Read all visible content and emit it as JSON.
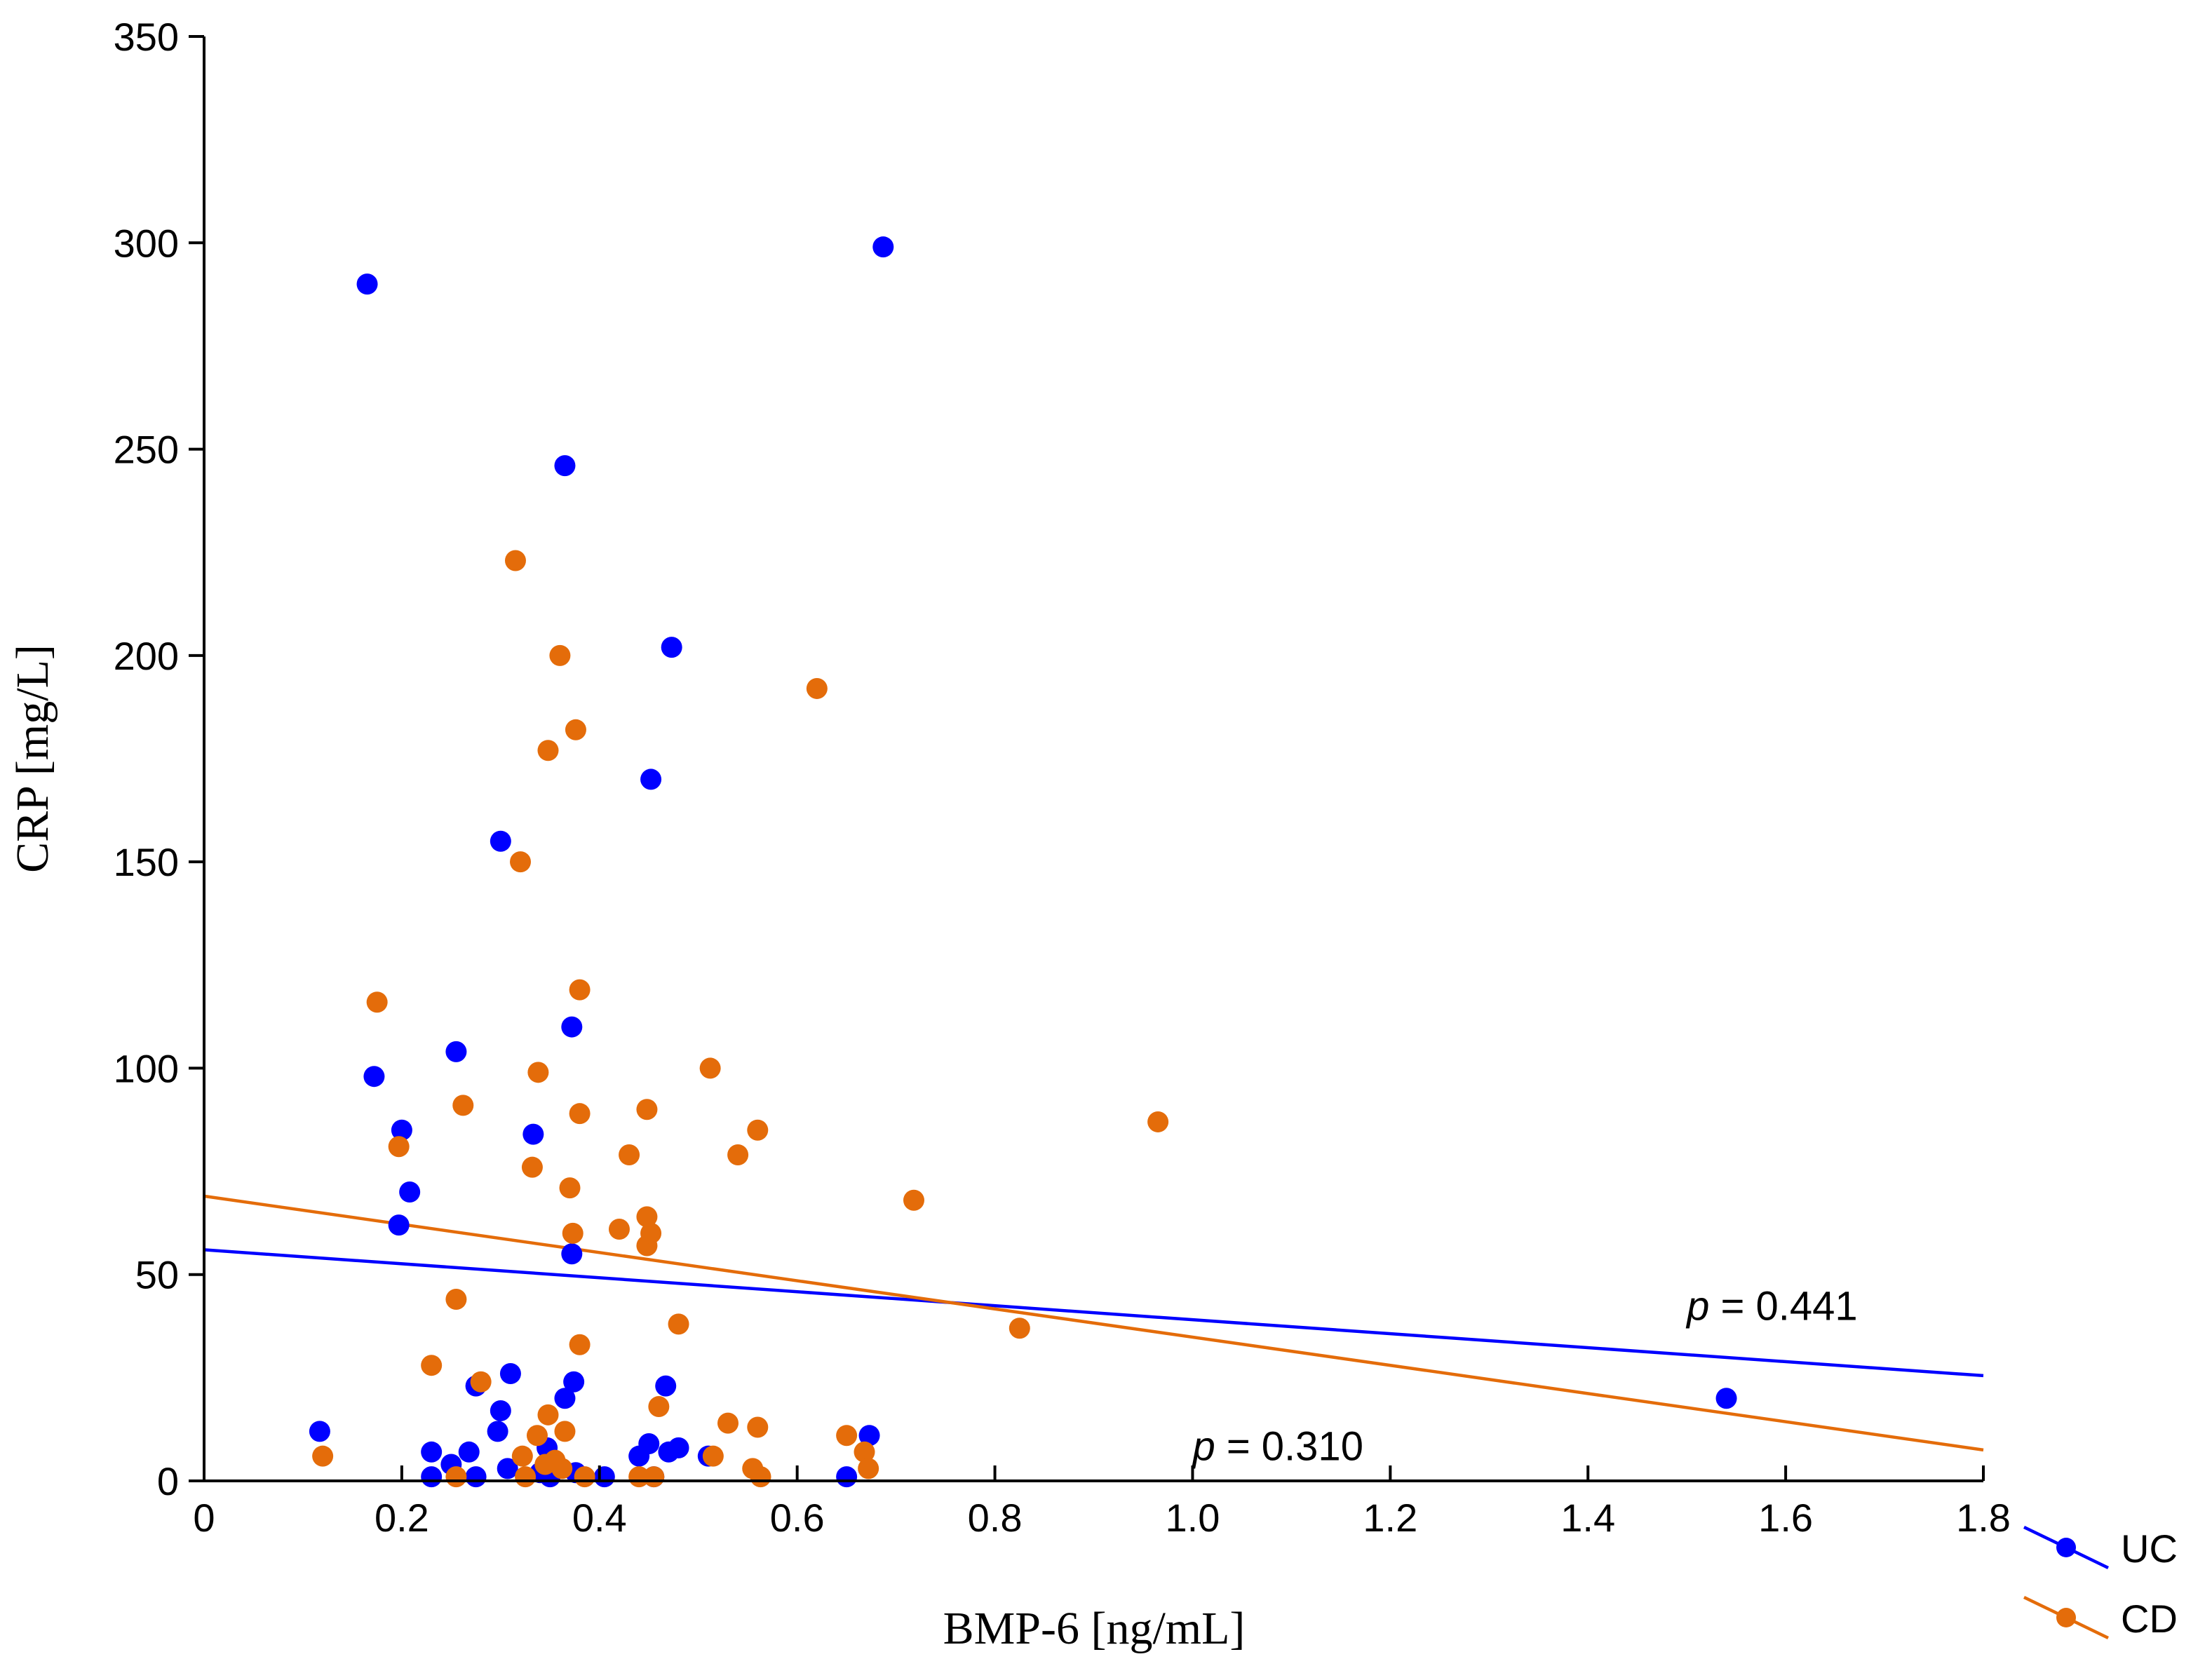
{
  "chart_data": {
    "type": "scatter",
    "title": "",
    "xlabel": "BMP-6 [ng/mL]",
    "ylabel": "CRP [mg/L]",
    "xlim": [
      0,
      1.8
    ],
    "ylim": [
      0,
      350
    ],
    "x_ticks": [
      0,
      0.2,
      0.4,
      0.6,
      0.8,
      1.0,
      1.2,
      1.4,
      1.6,
      1.8
    ],
    "x_tick_labels": [
      "0",
      "0.2",
      "0.4",
      "0.6",
      "0.8",
      "1.0",
      "1.2",
      "1.4",
      "1.6",
      "1.8"
    ],
    "y_ticks": [
      0,
      50,
      100,
      150,
      200,
      250,
      300,
      350
    ],
    "y_tick_labels": [
      "0",
      "50",
      "100",
      "150",
      "200",
      "250",
      "300",
      "350"
    ],
    "legend_position": "bottom-right, outside plot",
    "series": [
      {
        "name": "UC",
        "color": "#0000ff",
        "fit": {
          "x": [
            0,
            1.8
          ],
          "y": [
            56,
            25.5
          ]
        },
        "p_label": {
          "italic": "p",
          "text": " = 0.441",
          "x": 1.5,
          "y": 39
        },
        "points": [
          [
            0.117,
            12
          ],
          [
            0.165,
            290
          ],
          [
            0.172,
            98
          ],
          [
            0.2,
            85
          ],
          [
            0.197,
            62
          ],
          [
            0.208,
            70
          ],
          [
            0.23,
            7
          ],
          [
            0.23,
            1
          ],
          [
            0.25,
            4
          ],
          [
            0.255,
            104
          ],
          [
            0.268,
            7
          ],
          [
            0.275,
            23
          ],
          [
            0.275,
            1
          ],
          [
            0.297,
            12
          ],
          [
            0.3,
            17
          ],
          [
            0.3,
            155
          ],
          [
            0.307,
            3
          ],
          [
            0.31,
            26
          ],
          [
            0.333,
            84
          ],
          [
            0.34,
            2
          ],
          [
            0.347,
            8
          ],
          [
            0.35,
            1
          ],
          [
            0.365,
            246
          ],
          [
            0.365,
            20
          ],
          [
            0.372,
            110
          ],
          [
            0.372,
            55
          ],
          [
            0.374,
            24
          ],
          [
            0.376,
            2
          ],
          [
            0.405,
            1
          ],
          [
            0.44,
            6
          ],
          [
            0.45,
            9
          ],
          [
            0.452,
            170
          ],
          [
            0.455,
            1
          ],
          [
            0.467,
            23
          ],
          [
            0.47,
            7
          ],
          [
            0.473,
            202
          ],
          [
            0.48,
            8
          ],
          [
            0.51,
            6
          ],
          [
            0.65,
            1
          ],
          [
            0.673,
            11
          ],
          [
            0.687,
            299
          ],
          [
            1.54,
            20
          ]
        ]
      },
      {
        "name": "CD",
        "color": "#e46c0a",
        "fit": {
          "x": [
            0,
            1.8
          ],
          "y": [
            69,
            7.5
          ]
        },
        "p_label": {
          "italic": "p",
          "text": " = 0.310",
          "x": 1.0,
          "y": 5
        },
        "points": [
          [
            0.12,
            6
          ],
          [
            0.175,
            116
          ],
          [
            0.197,
            81
          ],
          [
            0.23,
            28
          ],
          [
            0.255,
            44
          ],
          [
            0.255,
            1
          ],
          [
            0.262,
            91
          ],
          [
            0.28,
            24
          ],
          [
            0.315,
            223
          ],
          [
            0.32,
            150
          ],
          [
            0.322,
            6
          ],
          [
            0.325,
            1
          ],
          [
            0.332,
            76
          ],
          [
            0.337,
            11
          ],
          [
            0.338,
            99
          ],
          [
            0.345,
            4
          ],
          [
            0.348,
            177
          ],
          [
            0.348,
            16
          ],
          [
            0.355,
            5
          ],
          [
            0.36,
            200
          ],
          [
            0.362,
            3
          ],
          [
            0.365,
            12
          ],
          [
            0.37,
            71
          ],
          [
            0.373,
            60
          ],
          [
            0.376,
            182
          ],
          [
            0.38,
            119
          ],
          [
            0.38,
            89
          ],
          [
            0.38,
            33
          ],
          [
            0.385,
            1
          ],
          [
            0.42,
            61
          ],
          [
            0.43,
            79
          ],
          [
            0.44,
            1
          ],
          [
            0.448,
            90
          ],
          [
            0.448,
            64
          ],
          [
            0.448,
            57
          ],
          [
            0.452,
            60
          ],
          [
            0.455,
            1
          ],
          [
            0.46,
            18
          ],
          [
            0.48,
            38
          ],
          [
            0.512,
            100
          ],
          [
            0.515,
            6
          ],
          [
            0.53,
            14
          ],
          [
            0.54,
            79
          ],
          [
            0.555,
            3
          ],
          [
            0.56,
            85
          ],
          [
            0.56,
            13
          ],
          [
            0.563,
            1
          ],
          [
            0.62,
            192
          ],
          [
            0.65,
            11
          ],
          [
            0.668,
            7
          ],
          [
            0.672,
            3
          ],
          [
            0.718,
            68
          ],
          [
            0.825,
            37
          ],
          [
            0.965,
            87
          ]
        ]
      }
    ]
  }
}
